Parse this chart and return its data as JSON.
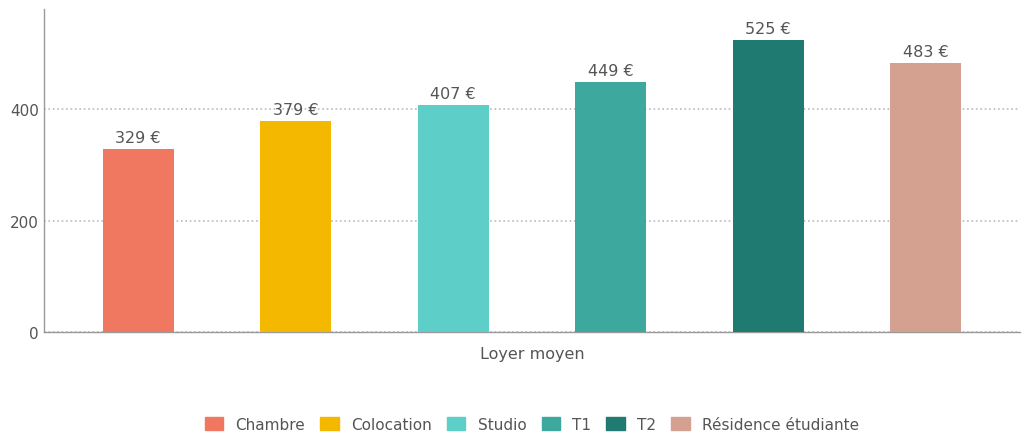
{
  "categories": [
    "Chambre",
    "Colocation",
    "Studio",
    "T1",
    "T2",
    "Résidence étudiante"
  ],
  "values": [
    329,
    379,
    407,
    449,
    525,
    483
  ],
  "bar_colors": [
    "#F07860",
    "#F5B800",
    "#5ECEC8",
    "#3DA89E",
    "#1F7A72",
    "#D4A090"
  ],
  "labels": [
    "329 €",
    "379 €",
    "407 €",
    "449 €",
    "525 €",
    "483 €"
  ],
  "xlabel": "Loyer moyen",
  "ylim": [
    0,
    580
  ],
  "yticks": [
    0,
    200,
    400
  ],
  "grid_color": "#BBBBBB",
  "background_color": "#FFFFFF",
  "bar_width": 0.45,
  "label_fontsize": 11.5,
  "xlabel_fontsize": 11.5,
  "tick_fontsize": 11,
  "legend_fontsize": 11,
  "legend_entries": [
    "Chambre",
    "Colocation",
    "Studio",
    "T1",
    "T2",
    "Résidence étudiante"
  ],
  "legend_colors": [
    "#F07860",
    "#F5B800",
    "#5ECEC8",
    "#3DA89E",
    "#1F7A72",
    "#D4A090"
  ],
  "spine_color": "#999999",
  "label_color": "#555555"
}
